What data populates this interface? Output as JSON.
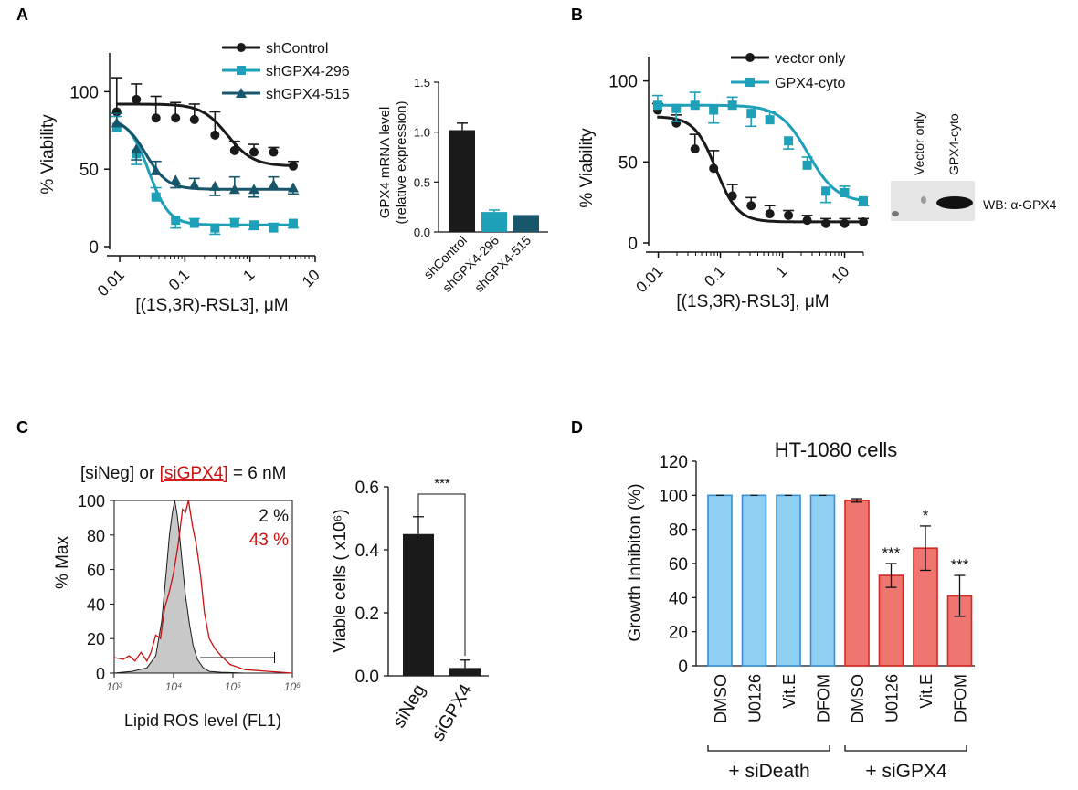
{
  "colors": {
    "black": "#1a1a1a",
    "teal": "#1ea0b8",
    "navy": "#17566b",
    "blue_fill": "#8fd0f2",
    "blue_edge": "#3a8fd1",
    "red_fill": "#ef7670",
    "red_edge": "#d2281f",
    "hist_red": "#cc1111",
    "gel_bg": "#e6e6e6"
  },
  "panels": {
    "A": "A",
    "B": "B",
    "C": "C",
    "D": "D"
  },
  "chart_data": [
    {
      "id": "A1",
      "type": "line",
      "xscale": "log",
      "xlabel": "[(1S,3R)-RSL3], μM",
      "ylabel": "% Viability",
      "xticks": [
        "0.01",
        "0.1",
        "1",
        "10"
      ],
      "yticks": [
        "0",
        "50",
        "100"
      ],
      "xlim": [
        0.007,
        10
      ],
      "ylim": [
        0,
        125
      ],
      "series": [
        {
          "name": "shControl",
          "color": "#1a1a1a",
          "marker": "circle",
          "x": [
            0.009,
            0.018,
            0.036,
            0.072,
            0.14,
            0.29,
            0.58,
            1.15,
            2.3,
            4.6
          ],
          "y": [
            87,
            95,
            83,
            83,
            82,
            72,
            62,
            61,
            61,
            52
          ],
          "err": [
            22,
            10,
            14,
            10,
            10,
            15,
            6,
            5,
            3,
            3
          ],
          "fit": {
            "top": 92,
            "bottom": 52,
            "ec50": 0.45,
            "hill": 2.2
          }
        },
        {
          "name": "shGPX4-296",
          "color": "#1ea0b8",
          "marker": "square",
          "x": [
            0.009,
            0.018,
            0.036,
            0.072,
            0.14,
            0.29,
            0.58,
            1.15,
            2.3,
            4.6
          ],
          "y": [
            77,
            60,
            32,
            17,
            15,
            12,
            15,
            14,
            12,
            15
          ],
          "err": [
            7,
            7,
            6,
            5,
            3,
            4,
            3,
            3,
            3,
            3
          ],
          "fit": {
            "top": 83,
            "bottom": 14,
            "ec50": 0.028,
            "hill": 2.8
          }
        },
        {
          "name": "shGPX4-515",
          "color": "#17566b",
          "marker": "triangle",
          "x": [
            0.009,
            0.018,
            0.036,
            0.072,
            0.14,
            0.29,
            0.58,
            1.15,
            2.3,
            4.6
          ],
          "y": [
            80,
            63,
            49,
            43,
            40,
            39,
            37,
            37,
            40,
            38
          ],
          "err": [
            6,
            7,
            6,
            5,
            4,
            6,
            8,
            5,
            5,
            4
          ],
          "fit": {
            "top": 83,
            "bottom": 37,
            "ec50": 0.025,
            "hill": 2.6
          }
        }
      ]
    },
    {
      "id": "A2",
      "type": "bar",
      "ylabel": "GPX4 mRNA level (relative expression)",
      "categories": [
        "shControl",
        "shGPX4-296",
        "shGPX4-515"
      ],
      "values": [
        1.02,
        0.2,
        0.17
      ],
      "err": [
        0.07,
        0.02,
        0.0
      ],
      "colors": [
        "#1a1a1a",
        "#1ea0b8",
        "#17566b"
      ],
      "yticks": [
        "0.0",
        "0.5",
        "1.0",
        "1.5"
      ],
      "ylim": [
        0,
        1.5
      ]
    },
    {
      "id": "B1",
      "type": "line",
      "xscale": "log",
      "xlabel": "[(1S,3R)-RSL3], μM",
      "ylabel": "% Viability",
      "xticks": [
        "0.01",
        "0.1",
        "1",
        "10"
      ],
      "yticks": [
        "0",
        "50",
        "100"
      ],
      "xlim": [
        0.007,
        20
      ],
      "ylim": [
        0,
        115
      ],
      "series": [
        {
          "name": "vector only",
          "color": "#1a1a1a",
          "marker": "circle",
          "x": [
            0.0098,
            0.0195,
            0.039,
            0.078,
            0.156,
            0.313,
            0.625,
            1.25,
            2.5,
            5,
            10,
            20
          ],
          "y": [
            82,
            74,
            58,
            46,
            29,
            23,
            18,
            17,
            14,
            12,
            12,
            13
          ],
          "err": [
            4,
            5,
            9,
            11,
            7,
            5,
            5,
            3,
            3,
            3,
            3,
            2
          ],
          "fit": {
            "top": 78,
            "bottom": 13,
            "ec50": 0.085,
            "hill": 2.5
          }
        },
        {
          "name": "GPX4-cyto",
          "color": "#1ea0b8",
          "marker": "square",
          "x": [
            0.0098,
            0.0195,
            0.039,
            0.078,
            0.156,
            0.313,
            0.625,
            1.25,
            2.5,
            5,
            10,
            20
          ],
          "y": [
            85,
            83,
            85,
            82,
            85,
            80,
            76,
            63,
            48,
            32,
            31,
            26
          ],
          "err": [
            6,
            8,
            8,
            8,
            5,
            8,
            5,
            5,
            5,
            7,
            4,
            3
          ],
          "fit": {
            "top": 85,
            "bottom": 25,
            "ec50": 2.6,
            "hill": 1.9
          }
        }
      ]
    },
    {
      "id": "C1",
      "type": "area",
      "title": "[siNeg] or [siGPX4] = 6 nM",
      "title_parts": [
        "[siNeg] or ",
        "[siGPX4]",
        " = 6 nM"
      ],
      "xlabel": "Lipid ROS level (FL1)",
      "ylabel": "% Max",
      "xticks": [
        "10³",
        "10⁴",
        "10⁵",
        "10⁶"
      ],
      "yticks": [
        "0",
        "20",
        "40",
        "60",
        "80",
        "100"
      ],
      "xlim": [
        3,
        6
      ],
      "ylim": [
        0,
        100
      ],
      "series": [
        {
          "name": "siNeg",
          "color": "#1a1a1a",
          "fill": "#c8c8c8",
          "label": "2 %",
          "x": [
            3.0,
            3.3,
            3.55,
            3.7,
            3.8,
            3.88,
            3.93,
            3.98,
            4.02,
            4.06,
            4.1,
            4.15,
            4.2,
            4.27,
            4.33,
            4.4,
            4.5,
            4.6,
            4.8,
            5.2,
            6.0
          ],
          "y": [
            0,
            1,
            3,
            10,
            30,
            60,
            80,
            93,
            100,
            92,
            80,
            62,
            45,
            28,
            16,
            8,
            3,
            1,
            0.5,
            0,
            0
          ]
        },
        {
          "name": "siGPX4",
          "color": "#cc1111",
          "label": "43 %",
          "x": [
            3.0,
            3.15,
            3.25,
            3.35,
            3.45,
            3.55,
            3.62,
            3.7,
            3.78,
            3.85,
            3.92,
            4.0,
            4.08,
            4.15,
            4.2,
            4.25,
            4.32,
            4.38,
            4.45,
            4.52,
            4.6,
            4.7,
            4.8,
            4.95,
            5.2,
            5.6,
            6.0
          ],
          "y": [
            9,
            8,
            10,
            7,
            12,
            7,
            12,
            22,
            20,
            38,
            46,
            58,
            75,
            95,
            93,
            100,
            85,
            75,
            58,
            35,
            20,
            14,
            10,
            5,
            2,
            1,
            0
          ]
        }
      ],
      "gate": {
        "x_start": 4.45,
        "x_end": 5.7,
        "y": 9
      }
    },
    {
      "id": "C2",
      "type": "bar",
      "ylabel": "Viable cells ( x10⁶)",
      "categories": [
        "siNeg",
        "siGPX4"
      ],
      "values": [
        0.45,
        0.025
      ],
      "err": [
        0.055,
        0.025
      ],
      "yticks": [
        "0.0",
        "0.2",
        "0.4",
        "0.6"
      ],
      "ylim": [
        0,
        0.6
      ],
      "significance": "***"
    },
    {
      "id": "D1",
      "type": "bar",
      "title": "HT-1080 cells",
      "ylabel": "Growth Inhibiton (%)",
      "categories": [
        "DMSO",
        "U0126",
        "Vit.E",
        "DFOM",
        "DMSO",
        "U0126",
        "Vit.E",
        "DFOM"
      ],
      "values": [
        100,
        100,
        100,
        100,
        97,
        53,
        69,
        41
      ],
      "err": [
        0,
        0.3,
        0.3,
        0.3,
        1,
        7,
        13,
        12
      ],
      "annotations": [
        "",
        "",
        "",
        "",
        "",
        "***",
        "*",
        "***"
      ],
      "groups": [
        {
          "label": "+ siDeath",
          "color": "blue"
        },
        {
          "label": "+ siGPX4",
          "color": "red"
        }
      ],
      "yticks": [
        "0",
        "20",
        "40",
        "60",
        "80",
        "100",
        "120"
      ],
      "ylim": [
        0,
        120
      ]
    }
  ],
  "western_blot": {
    "lanes": [
      "Vector only",
      "GPX4-cyto"
    ],
    "label": "WB: α-GPX4"
  }
}
